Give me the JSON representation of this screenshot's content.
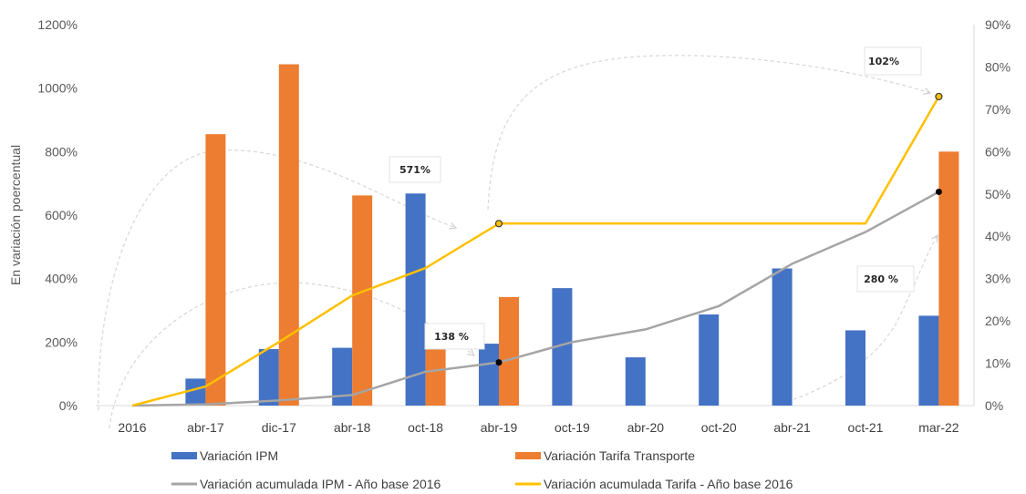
{
  "chart_data": {
    "type": "bar",
    "ylabel": "En variación poercentual",
    "categories": [
      "2016",
      "abr-17",
      "dic-17",
      "abr-18",
      "oct-18",
      "abr-19",
      "oct-19",
      "abr-20",
      "oct-20",
      "abr-21",
      "oct-21",
      "mar-22"
    ],
    "ylim": [
      0,
      1200
    ],
    "y2lim": [
      0,
      90
    ],
    "yticks": [
      "0%",
      "200%",
      "400%",
      "600%",
      "800%",
      "1000%",
      "1200%"
    ],
    "y2ticks": [
      "0%",
      "10%",
      "20%",
      "30%",
      "40%",
      "50%",
      "60%",
      "70%",
      "80%",
      "90%"
    ],
    "series": [
      {
        "name": "Variación IPM",
        "type": "bar",
        "axis": "left",
        "color": "#4472C4",
        "values": [
          null,
          85,
          178,
          182,
          668,
          195,
          370,
          152,
          287,
          432,
          237,
          283
        ]
      },
      {
        "name": "Variación Tarifa Transporte",
        "type": "bar",
        "axis": "left",
        "color": "#ED7D31",
        "values": [
          null,
          855,
          1075,
          662,
          185,
          342,
          null,
          null,
          null,
          null,
          null,
          800
        ]
      },
      {
        "name": "Variación acumulada IPM - Año base 2016",
        "type": "line",
        "axis": "right",
        "color": "#A5A5A5",
        "values": [
          0,
          0.3,
          1.2,
          2.5,
          8,
          10.2,
          15,
          18,
          23.5,
          33.5,
          41,
          50.5
        ]
      },
      {
        "name": "Variación acumulada Tarifa - Año base 2016",
        "type": "line",
        "axis": "right",
        "color": "#FFC000",
        "values": [
          0,
          4.5,
          15,
          26,
          32.5,
          43,
          43,
          43,
          43,
          43,
          43,
          73
        ]
      }
    ],
    "annotations": [
      "571%",
      "138 %",
      "102%",
      "280 %"
    ],
    "grid": false,
    "legend": "bottom"
  }
}
